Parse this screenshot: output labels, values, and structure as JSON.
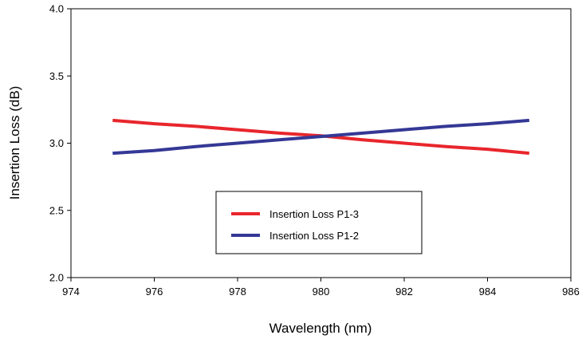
{
  "chart_data": {
    "type": "line",
    "title": "",
    "xlabel": "Wavelength (nm)",
    "ylabel": "Insertion Loss (dB)",
    "xlim": [
      974,
      986
    ],
    "ylim": [
      2.0,
      4.0
    ],
    "xticks": [
      974,
      976,
      978,
      980,
      982,
      984,
      986
    ],
    "yticks": [
      2.0,
      2.5,
      3.0,
      3.5,
      4.0
    ],
    "xtick_labels": [
      "974",
      "976",
      "978",
      "980",
      "982",
      "984",
      "986"
    ],
    "ytick_labels": [
      "2.0",
      "2.5",
      "3.0",
      "3.5",
      "4.0"
    ],
    "grid": false,
    "legend_position": "center-bottom",
    "series": [
      {
        "name": "Insertion Loss P1-3",
        "color": "#e8262c",
        "x": [
          975,
          976,
          977,
          978,
          979,
          980,
          981,
          982,
          983,
          984,
          985
        ],
        "y": [
          3.17,
          3.145,
          3.125,
          3.1,
          3.075,
          3.055,
          3.025,
          3.0,
          2.975,
          2.955,
          2.925
        ]
      },
      {
        "name": "Insertion Loss P1-2",
        "color": "#343895",
        "x": [
          975,
          976,
          977,
          978,
          979,
          980,
          981,
          982,
          983,
          984,
          985
        ],
        "y": [
          2.925,
          2.945,
          2.975,
          3.0,
          3.025,
          3.05,
          3.075,
          3.1,
          3.125,
          3.145,
          3.17
        ]
      }
    ]
  }
}
